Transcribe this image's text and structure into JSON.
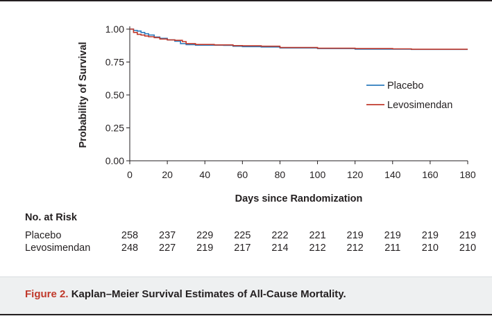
{
  "figure": {
    "caption_label": "Figure 2.",
    "caption_text": "Kaplan–Meier Survival Estimates of All-Cause Mortality."
  },
  "chart_data": {
    "type": "line",
    "step": true,
    "xlabel": "Days since Randomization",
    "ylabel": "Probability of Survival",
    "xlim": [
      0,
      180
    ],
    "ylim": [
      0,
      1
    ],
    "xticks": [
      0,
      20,
      40,
      60,
      80,
      100,
      120,
      140,
      160,
      180
    ],
    "yticks": [
      0,
      0.25,
      0.5,
      0.75,
      1
    ],
    "ytick_labels": [
      "0.00",
      "0.25",
      "0.50",
      "0.75",
      "1.00"
    ],
    "grid": false,
    "legend_position": "right",
    "series": [
      {
        "name": "Placebo",
        "color": "#2b7bbd",
        "points": [
          [
            0,
            1.0
          ],
          [
            2,
            0.99
          ],
          [
            4,
            0.985
          ],
          [
            6,
            0.975
          ],
          [
            8,
            0.965
          ],
          [
            10,
            0.955
          ],
          [
            13,
            0.94
          ],
          [
            16,
            0.93
          ],
          [
            20,
            0.918
          ],
          [
            24,
            0.908
          ],
          [
            27,
            0.89
          ],
          [
            30,
            0.882
          ],
          [
            35,
            0.878
          ],
          [
            50,
            0.877
          ],
          [
            55,
            0.87
          ],
          [
            60,
            0.867
          ],
          [
            70,
            0.864
          ],
          [
            80,
            0.857
          ],
          [
            100,
            0.852
          ],
          [
            120,
            0.848
          ],
          [
            140,
            0.848
          ],
          [
            150,
            0.846
          ],
          [
            180,
            0.846
          ]
        ]
      },
      {
        "name": "Levosimendan",
        "color": "#c0392b",
        "points": [
          [
            0,
            1.0
          ],
          [
            2,
            0.975
          ],
          [
            4,
            0.96
          ],
          [
            6,
            0.955
          ],
          [
            8,
            0.948
          ],
          [
            10,
            0.942
          ],
          [
            13,
            0.935
          ],
          [
            16,
            0.925
          ],
          [
            20,
            0.918
          ],
          [
            24,
            0.915
          ],
          [
            28,
            0.905
          ],
          [
            30,
            0.89
          ],
          [
            35,
            0.883
          ],
          [
            45,
            0.88
          ],
          [
            55,
            0.875
          ],
          [
            60,
            0.873
          ],
          [
            70,
            0.87
          ],
          [
            80,
            0.86
          ],
          [
            100,
            0.855
          ],
          [
            120,
            0.852
          ],
          [
            140,
            0.85
          ],
          [
            150,
            0.847
          ],
          [
            180,
            0.847
          ]
        ]
      }
    ]
  },
  "risk_table": {
    "title": "No. at Risk",
    "days": [
      0,
      20,
      40,
      60,
      80,
      100,
      120,
      140,
      160,
      180
    ],
    "rows": [
      {
        "label": "Placebo",
        "values": [
          258,
          237,
          229,
          225,
          222,
          221,
          219,
          219,
          219,
          219
        ]
      },
      {
        "label": "Levosimendan",
        "values": [
          248,
          227,
          219,
          217,
          214,
          212,
          212,
          211,
          210,
          210
        ]
      }
    ]
  }
}
